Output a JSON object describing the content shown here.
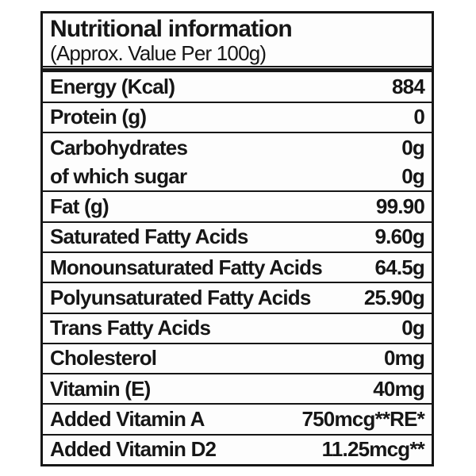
{
  "header": {
    "title": "Nutritional information",
    "subtitle": "(Approx. Value Per 100g)"
  },
  "table": {
    "rows": [
      {
        "label": "Energy (Kcal)",
        "value": "884"
      },
      {
        "label": "Protein (g)",
        "value": "0"
      },
      {
        "label": "Carbohydrates",
        "value": "0g"
      },
      {
        "label": "of which sugar",
        "value": "0g"
      },
      {
        "label": "Fat (g)",
        "value": "99.90"
      },
      {
        "label": "Saturated Fatty Acids",
        "value": "9.60g"
      },
      {
        "label": "Monounsaturated Fatty Acids",
        "value": "64.5g"
      },
      {
        "label": "Polyunsaturated Fatty Acids",
        "value": "25.90g"
      },
      {
        "label": "Trans Fatty Acids",
        "value": "0g"
      },
      {
        "label": "Cholesterol",
        "value": "0mg"
      },
      {
        "label": "Vitamin (E)",
        "value": "40mg"
      },
      {
        "label": "Added Vitamin A",
        "value": "750mcg**RE*"
      },
      {
        "label": "Added Vitamin D2",
        "value": "11.25mcg**"
      }
    ]
  },
  "colors": {
    "ink": "#161616",
    "background": "#ffffff"
  }
}
